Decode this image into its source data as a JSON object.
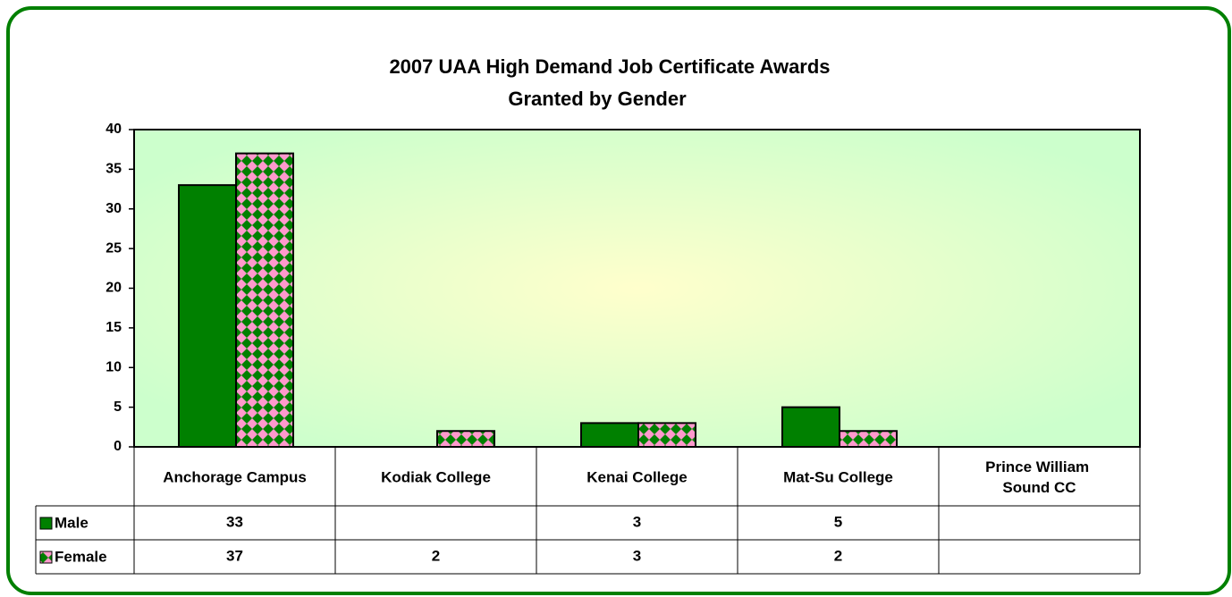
{
  "chart_data": {
    "type": "bar",
    "title": "2007 UAA High Demand Job Certificate Awards",
    "subtitle": "Granted by Gender",
    "categories": [
      "Anchorage Campus",
      "Kodiak College",
      "Kenai College",
      "Mat-Su College",
      "Prince William Sound CC"
    ],
    "series": [
      {
        "name": "Male",
        "color": "#008000",
        "values": [
          33,
          null,
          3,
          5,
          null
        ]
      },
      {
        "name": "Female",
        "color": "#008000",
        "pattern_color": "#ff99cc",
        "values": [
          37,
          2,
          3,
          2,
          null
        ]
      }
    ],
    "ylim": [
      0,
      40
    ],
    "yticks": [
      0,
      5,
      10,
      15,
      20,
      25,
      30,
      35,
      40
    ],
    "grid": false,
    "data_table": true
  }
}
